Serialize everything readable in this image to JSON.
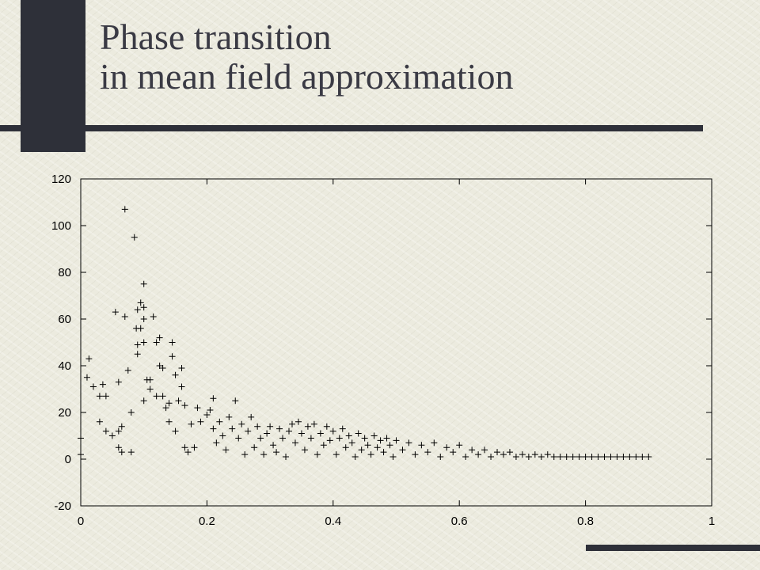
{
  "slide": {
    "title_line1": "Phase transition",
    "title_line2": "in mean field approximation",
    "colors": {
      "dark_bar": "#2e3039",
      "background": "#ecebdf"
    }
  },
  "chart_data": {
    "type": "scatter",
    "marker": "plus",
    "xlim": [
      0,
      1
    ],
    "ylim": [
      -20,
      120
    ],
    "xticks": [
      0,
      0.2,
      0.4,
      0.6,
      0.8,
      1
    ],
    "xtick_labels": [
      "0",
      "0.2",
      "0.4",
      "0.6",
      "0.8",
      "1"
    ],
    "yticks": [
      -20,
      0,
      20,
      40,
      60,
      80,
      100,
      120
    ],
    "ytick_labels": [
      "-20",
      "0",
      "20",
      "40",
      "60",
      "80",
      "100",
      "120"
    ],
    "grid": false,
    "points": [
      [
        0.0,
        2
      ],
      [
        0.0,
        9
      ],
      [
        0.01,
        35
      ],
      [
        0.013,
        43
      ],
      [
        0.02,
        31
      ],
      [
        0.03,
        27
      ],
      [
        0.035,
        32
      ],
      [
        0.04,
        27
      ],
      [
        0.03,
        16
      ],
      [
        0.04,
        12
      ],
      [
        0.05,
        10
      ],
      [
        0.055,
        63
      ],
      [
        0.06,
        33
      ],
      [
        0.06,
        12
      ],
      [
        0.065,
        14
      ],
      [
        0.06,
        5
      ],
      [
        0.065,
        3
      ],
      [
        0.07,
        107
      ],
      [
        0.07,
        61
      ],
      [
        0.075,
        38
      ],
      [
        0.08,
        20
      ],
      [
        0.08,
        3
      ],
      [
        0.085,
        95
      ],
      [
        0.088,
        56
      ],
      [
        0.09,
        49
      ],
      [
        0.09,
        45
      ],
      [
        0.09,
        64
      ],
      [
        0.095,
        67
      ],
      [
        0.095,
        56
      ],
      [
        0.1,
        75
      ],
      [
        0.1,
        65
      ],
      [
        0.1,
        50
      ],
      [
        0.1,
        60
      ],
      [
        0.105,
        34
      ],
      [
        0.1,
        25
      ],
      [
        0.11,
        30
      ],
      [
        0.11,
        34
      ],
      [
        0.115,
        61
      ],
      [
        0.12,
        27
      ],
      [
        0.12,
        50
      ],
      [
        0.125,
        52
      ],
      [
        0.125,
        40
      ],
      [
        0.13,
        39
      ],
      [
        0.13,
        27
      ],
      [
        0.135,
        22
      ],
      [
        0.14,
        24
      ],
      [
        0.14,
        16
      ],
      [
        0.145,
        50
      ],
      [
        0.145,
        44
      ],
      [
        0.15,
        36
      ],
      [
        0.15,
        12
      ],
      [
        0.155,
        25
      ],
      [
        0.16,
        31
      ],
      [
        0.16,
        39
      ],
      [
        0.165,
        23
      ],
      [
        0.165,
        5
      ],
      [
        0.17,
        3
      ],
      [
        0.175,
        15
      ],
      [
        0.18,
        5
      ],
      [
        0.185,
        22
      ],
      [
        0.19,
        16
      ],
      [
        0.2,
        19
      ],
      [
        0.205,
        21
      ],
      [
        0.21,
        13
      ],
      [
        0.21,
        26
      ],
      [
        0.215,
        7
      ],
      [
        0.22,
        16
      ],
      [
        0.225,
        10
      ],
      [
        0.23,
        4
      ],
      [
        0.235,
        18
      ],
      [
        0.24,
        13
      ],
      [
        0.245,
        25
      ],
      [
        0.25,
        9
      ],
      [
        0.255,
        15
      ],
      [
        0.26,
        2
      ],
      [
        0.265,
        12
      ],
      [
        0.27,
        18
      ],
      [
        0.275,
        5
      ],
      [
        0.28,
        14
      ],
      [
        0.285,
        9
      ],
      [
        0.29,
        2
      ],
      [
        0.295,
        11
      ],
      [
        0.3,
        14
      ],
      [
        0.305,
        6
      ],
      [
        0.31,
        3
      ],
      [
        0.315,
        13
      ],
      [
        0.32,
        9
      ],
      [
        0.325,
        1
      ],
      [
        0.33,
        12
      ],
      [
        0.335,
        15
      ],
      [
        0.34,
        7
      ],
      [
        0.345,
        16
      ],
      [
        0.35,
        11
      ],
      [
        0.355,
        4
      ],
      [
        0.36,
        14
      ],
      [
        0.365,
        9
      ],
      [
        0.37,
        15
      ],
      [
        0.375,
        2
      ],
      [
        0.38,
        11
      ],
      [
        0.385,
        6
      ],
      [
        0.39,
        14
      ],
      [
        0.395,
        8
      ],
      [
        0.4,
        12
      ],
      [
        0.405,
        2
      ],
      [
        0.41,
        9
      ],
      [
        0.415,
        13
      ],
      [
        0.42,
        5
      ],
      [
        0.425,
        10
      ],
      [
        0.43,
        7
      ],
      [
        0.435,
        1
      ],
      [
        0.44,
        11
      ],
      [
        0.445,
        4
      ],
      [
        0.45,
        9
      ],
      [
        0.455,
        6
      ],
      [
        0.46,
        2
      ],
      [
        0.465,
        10
      ],
      [
        0.47,
        5
      ],
      [
        0.475,
        8
      ],
      [
        0.48,
        3
      ],
      [
        0.485,
        9
      ],
      [
        0.49,
        6
      ],
      [
        0.495,
        1
      ],
      [
        0.5,
        8
      ],
      [
        0.51,
        4
      ],
      [
        0.52,
        7
      ],
      [
        0.53,
        2
      ],
      [
        0.54,
        6
      ],
      [
        0.55,
        3
      ],
      [
        0.56,
        7
      ],
      [
        0.57,
        1
      ],
      [
        0.58,
        5
      ],
      [
        0.59,
        3
      ],
      [
        0.6,
        6
      ],
      [
        0.61,
        1
      ],
      [
        0.62,
        4
      ],
      [
        0.63,
        2
      ],
      [
        0.64,
        4
      ],
      [
        0.65,
        1
      ],
      [
        0.66,
        3
      ],
      [
        0.67,
        2
      ],
      [
        0.68,
        3
      ],
      [
        0.69,
        1
      ],
      [
        0.7,
        2
      ],
      [
        0.71,
        1
      ],
      [
        0.72,
        2
      ],
      [
        0.73,
        1
      ],
      [
        0.74,
        2
      ],
      [
        0.75,
        1
      ],
      [
        0.76,
        1
      ],
      [
        0.77,
        1
      ],
      [
        0.78,
        1
      ],
      [
        0.79,
        1
      ],
      [
        0.8,
        1
      ],
      [
        0.81,
        1
      ],
      [
        0.82,
        1
      ],
      [
        0.83,
        1
      ],
      [
        0.84,
        1
      ],
      [
        0.85,
        1
      ],
      [
        0.86,
        1
      ],
      [
        0.87,
        1
      ],
      [
        0.88,
        1
      ],
      [
        0.89,
        1
      ],
      [
        0.9,
        1
      ]
    ]
  }
}
